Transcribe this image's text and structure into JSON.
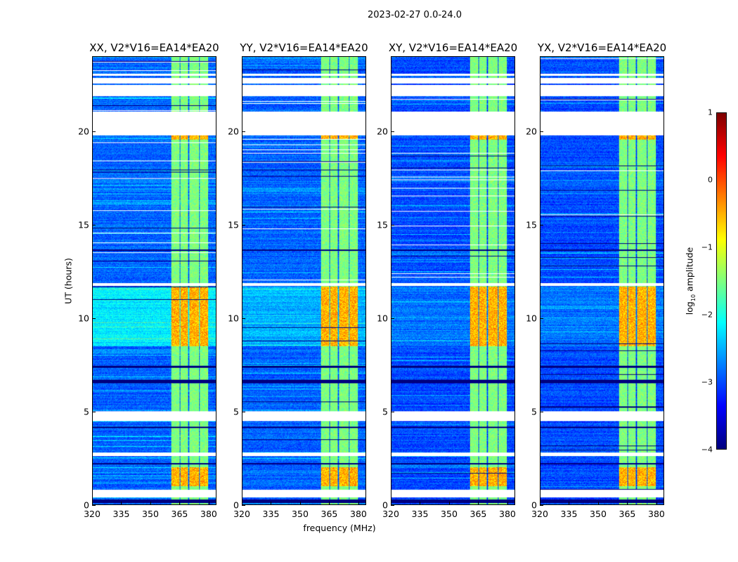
{
  "chart_data": {
    "type": "heatmap",
    "title": "2023-02-27 0.0-24.0",
    "xlabel": "frequency (MHz)",
    "ylabel": "UT (hours)",
    "xlim": [
      320,
      384
    ],
    "ylim": [
      0,
      24
    ],
    "xticks": [
      "320",
      "335",
      "350",
      "365",
      "380"
    ],
    "xtick_values": [
      320,
      335,
      350,
      365,
      380
    ],
    "yticks": [
      "0",
      "5",
      "10",
      "15",
      "20"
    ],
    "ytick_values": [
      0,
      5,
      10,
      15,
      20
    ],
    "panels": [
      {
        "title": "XX, V2*V16=EA14*EA20",
        "background_level": -2.9,
        "day_background_level": -2.2
      },
      {
        "title": "YY, V2*V16=EA14*EA20",
        "background_level": -2.9,
        "day_background_level": -2.5
      },
      {
        "title": "XY, V2*V16=EA14*EA20",
        "background_level": -3.0,
        "day_background_level": -2.8
      },
      {
        "title": "YX, V2*V16=EA14*EA20",
        "background_level": -3.0,
        "day_background_level": -2.8
      }
    ],
    "rfi_bands_mhz": [
      [
        360.5,
        365
      ],
      [
        365.5,
        369.5
      ],
      [
        370,
        375
      ],
      [
        375.5,
        380
      ]
    ],
    "rfi_band_level": -1.5,
    "strong_rfi_hours": [
      [
        8.5,
        11.7
      ],
      [
        1.0,
        2.0
      ],
      [
        19.6,
        19.8
      ]
    ],
    "strong_rfi_level": -0.5,
    "flagged_hours_white": [
      [
        22.6,
        22.9
      ],
      [
        21.9,
        22.5
      ],
      [
        19.8,
        21.1
      ],
      [
        11.75,
        11.9
      ],
      [
        4.5,
        5.0
      ],
      [
        2.6,
        2.8
      ],
      [
        0.4,
        0.8
      ]
    ],
    "flagged_hours_black": [
      [
        6.5,
        6.7
      ],
      [
        7.35,
        7.45
      ],
      [
        2.15,
        2.25
      ],
      [
        0.1,
        0.3
      ],
      [
        4.1,
        4.2
      ],
      [
        13.6,
        13.7
      ]
    ],
    "colorbar": {
      "label_main": "log",
      "label_sub": "10",
      "label_rest": " amplitude",
      "range": [
        -4,
        1
      ],
      "ticks": [
        "1",
        "0",
        "−1",
        "−2",
        "−3",
        "−4"
      ],
      "tick_values": [
        1,
        0,
        -1,
        -2,
        -3,
        -4
      ],
      "colormap": "jet"
    }
  }
}
